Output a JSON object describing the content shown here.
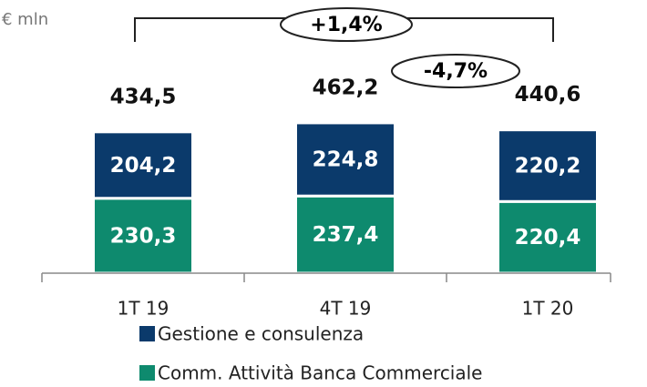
{
  "chart_data": {
    "type": "stacked_bar",
    "unit_label": "€ mln",
    "categories": [
      "1T 19",
      "4T 19",
      "1T 20"
    ],
    "series": [
      {
        "name": "Gestione e consulenza",
        "color": "#0b3a6b",
        "values": [
          204.2,
          224.8,
          220.2
        ],
        "value_labels": [
          "204,2",
          "224,8",
          "220,2"
        ]
      },
      {
        "name": "Comm. Attività Banca Commerciale",
        "color": "#0e8a6e",
        "values": [
          230.3,
          237.4,
          220.4
        ],
        "value_labels": [
          "230,3",
          "237,4",
          "220,4"
        ]
      }
    ],
    "totals": {
      "values": [
        434.5,
        462.2,
        440.6
      ],
      "value_labels": [
        "434,5",
        "462,2",
        "440,6"
      ]
    },
    "annotations": [
      "+1,4%",
      "-4,7%"
    ],
    "ylim": [
      0,
      840
    ]
  }
}
